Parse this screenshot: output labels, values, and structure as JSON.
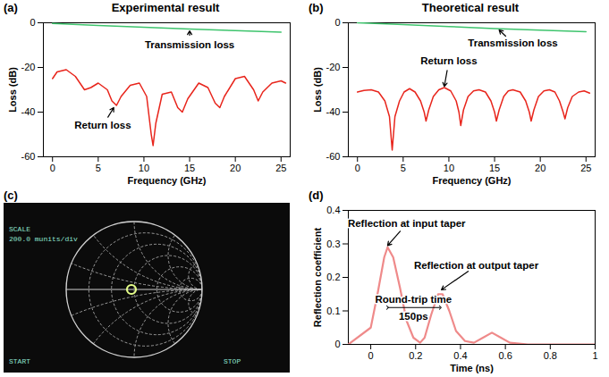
{
  "chart_data": [
    {
      "panel": "(a)",
      "type": "line",
      "title": "Experimental result",
      "x_label": "Frequency (GHz)",
      "y_label": "Loss (dB)",
      "xlim": [
        -1,
        26
      ],
      "xticks": [
        0,
        5,
        10,
        15,
        20,
        25
      ],
      "ylim": [
        -60,
        0
      ],
      "yticks": [
        0,
        -20,
        -40,
        -60
      ],
      "series": [
        {
          "color": "#3ec46d",
          "x": [
            0,
            5,
            10,
            15,
            20,
            25
          ],
          "values": [
            -0.3,
            -1.2,
            -2,
            -2.8,
            -3.5,
            -4.2
          ]
        },
        {
          "color": "#e8251c",
          "x": [
            0,
            0.5,
            1.5,
            2.5,
            3.5,
            4.2,
            5,
            6,
            6.5,
            7,
            7.5,
            8.5,
            9.5,
            10.3,
            10.8,
            11,
            11.3,
            12,
            13,
            13.7,
            14.2,
            14.8,
            16,
            17,
            17.8,
            18.3,
            18.8,
            20,
            21,
            22,
            22.5,
            23,
            24,
            25,
            25.5
          ],
          "values": [
            -25,
            -22,
            -21,
            -24,
            -30,
            -29,
            -27,
            -30,
            -35,
            -37,
            -33,
            -28,
            -27,
            -33,
            -50,
            -55,
            -45,
            -32,
            -31,
            -38,
            -40,
            -34,
            -27,
            -29,
            -36,
            -38,
            -33,
            -25,
            -24,
            -30,
            -35,
            -31,
            -27,
            -26,
            -27
          ]
        }
      ],
      "annotations": [
        {
          "text": "Transmission loss",
          "x": 15,
          "y": -10,
          "point": [
            15,
            -3.6
          ]
        },
        {
          "text": "Return loss",
          "x": 5.5,
          "y": -46,
          "point": [
            6.7,
            -38
          ]
        }
      ]
    },
    {
      "panel": "(b)",
      "type": "line",
      "title": "Theoretical result",
      "x_label": "Frequency (GHz)",
      "y_label": "Loss (dB)",
      "xlim": [
        -1,
        26
      ],
      "xticks": [
        0,
        5,
        10,
        15,
        20,
        25
      ],
      "ylim": [
        -60,
        0
      ],
      "yticks": [
        0,
        -20,
        -40,
        -60
      ],
      "series": [
        {
          "color": "#3ec46d",
          "x": [
            0,
            5,
            10,
            15,
            20,
            25
          ],
          "values": [
            0,
            -0.8,
            -1.7,
            -2.6,
            -3.3,
            -4
          ]
        },
        {
          "color": "#e8251c",
          "x": [
            0,
            0.7,
            1.5,
            2.3,
            3,
            3.5,
            3.8,
            4.1,
            4.6,
            5.1,
            5.7,
            6.3,
            6.9,
            7.3,
            7.5,
            7.8,
            8.3,
            8.9,
            9.5,
            10.2,
            10.8,
            11.1,
            11.3,
            11.6,
            12.1,
            12.7,
            13.3,
            14,
            14.6,
            15,
            15.2,
            15.5,
            16,
            16.5,
            17,
            17.8,
            18.4,
            18.8,
            19,
            19.3,
            19.8,
            20.4,
            21,
            21.6,
            22.1,
            22.5,
            22.7,
            23,
            23.5,
            24.2,
            24.8,
            25.4
          ],
          "values": [
            -31,
            -30.3,
            -30,
            -31,
            -35,
            -42,
            -57,
            -42,
            -35,
            -31,
            -29.5,
            -31,
            -35,
            -40,
            -44,
            -39,
            -33,
            -30,
            -29,
            -30.5,
            -35,
            -40,
            -46,
            -39,
            -33,
            -30.5,
            -30,
            -31,
            -35,
            -40,
            -44,
            -39,
            -33,
            -30.5,
            -30,
            -31,
            -35,
            -40,
            -44,
            -39,
            -33,
            -30.5,
            -30,
            -31,
            -35,
            -40,
            -43,
            -38,
            -33,
            -31,
            -30.5,
            -31.5
          ]
        }
      ],
      "annotations": [
        {
          "text": "Transmission loss",
          "x": 17,
          "y": -9,
          "point": [
            15.5,
            -3.2
          ]
        },
        {
          "text": "Return loss",
          "x": 10,
          "y": -17,
          "point": [
            9.5,
            -28.5
          ]
        }
      ]
    },
    {
      "panel": "(c)",
      "type": "smith",
      "screen_texts": [
        "SCALE",
        "200.0 munits/div",
        "START",
        "STOP"
      ],
      "points": [
        {
          "re": -0.04,
          "im": 0
        }
      ]
    },
    {
      "panel": "(d)",
      "type": "line",
      "x_label": "Time (ns)",
      "y_label": "Reflection coefficient",
      "xlim": [
        -0.1,
        1
      ],
      "xticks": [
        0,
        0.2,
        0.4,
        0.6,
        0.8,
        1
      ],
      "ylim": [
        0,
        0.4
      ],
      "yticks": [
        0,
        0.1,
        0.2,
        0.3,
        0.4
      ],
      "series": [
        {
          "color": "#ef8a8a",
          "x": [
            -0.1,
            0,
            0.03,
            0.06,
            0.075,
            0.1,
            0.13,
            0.16,
            0.19,
            0.22,
            0.24,
            0.27,
            0.3,
            0.32,
            0.35,
            0.38,
            0.42,
            0.46,
            0.5,
            0.54,
            0.58,
            0.62,
            0.7,
            1
          ],
          "values": [
            0,
            0.05,
            0.15,
            0.26,
            0.29,
            0.26,
            0.17,
            0.07,
            0.02,
            0.005,
            0.02,
            0.09,
            0.15,
            0.15,
            0.1,
            0.04,
            0.01,
            0.005,
            0.02,
            0.035,
            0.02,
            0.005,
            0,
            0
          ]
        }
      ],
      "annotations": [
        {
          "text": "Reflection at input taper",
          "x": 0.16,
          "y": 0.36,
          "point": [
            0.075,
            0.295
          ]
        },
        {
          "text": "Reflection at output taper",
          "x": 0.47,
          "y": 0.235,
          "point": [
            0.315,
            0.163
          ]
        },
        {
          "text": "Round-trip time",
          "x": 0.19,
          "y": 0.135
        },
        {
          "text": "150ps",
          "x": 0.19,
          "y": 0.083
        }
      ],
      "spans": [
        {
          "x1": 0.075,
          "x2": 0.31,
          "y": 0.11
        }
      ]
    }
  ]
}
